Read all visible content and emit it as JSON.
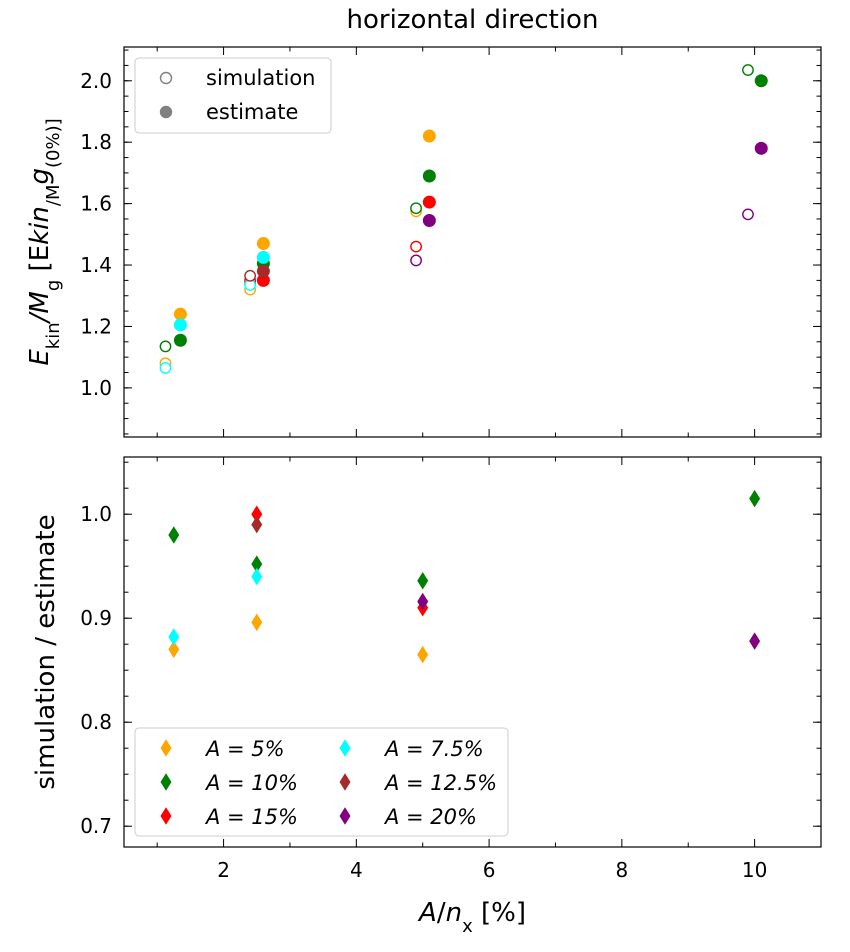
{
  "chart_data": [
    {
      "type": "scatter",
      "title": "horizontal direction",
      "ylabel_parts": [
        "E",
        "kin",
        "/M",
        "g",
        " [E",
        "kin",
        "/M",
        "g",
        "(0%)]"
      ],
      "ylabel": "E_kin/M_g [E_kin/M_g(0%)]",
      "xlim": [
        0.5,
        11
      ],
      "ylim": [
        0.84,
        2.11
      ],
      "yticks": [
        1.0,
        1.2,
        1.4,
        1.6,
        1.8,
        2.0
      ],
      "ytick_labels": [
        "1.0",
        "1.2",
        "1.4",
        "1.6",
        "1.8",
        "2.0"
      ],
      "legend": {
        "position": "top-left",
        "entries": [
          {
            "label": "simulation",
            "marker": "open-circle",
            "color": "#808080"
          },
          {
            "label": "estimate",
            "marker": "filled-circle",
            "color": "#808080"
          }
        ]
      },
      "series": [
        {
          "name": "A = 5%",
          "color": "#ffa500",
          "simulation": {
            "x": [
              1.125,
              2.4,
              4.9
            ],
            "y": [
              1.08,
              1.32,
              1.575
            ]
          },
          "estimate": {
            "x": [
              1.35,
              2.6,
              5.1
            ],
            "y": [
              1.24,
              1.47,
              1.82
            ]
          }
        },
        {
          "name": "A = 10%",
          "color": "#008000",
          "simulation": {
            "x": [
              1.125,
              2.4,
              4.9,
              9.9
            ],
            "y": [
              1.135,
              1.34,
              1.585,
              2.035
            ]
          },
          "estimate": {
            "x": [
              1.35,
              2.6,
              5.1,
              10.1
            ],
            "y": [
              1.155,
              1.405,
              1.69,
              2.0
            ]
          }
        },
        {
          "name": "A = 15%",
          "color": "#ff0000",
          "simulation": {
            "x": [
              2.4,
              4.9
            ],
            "y": [
              1.35,
              1.46
            ]
          },
          "estimate": {
            "x": [
              2.6,
              5.1
            ],
            "y": [
              1.35,
              1.605
            ]
          }
        },
        {
          "name": "A = 7.5%",
          "color": "#00ffff",
          "simulation": {
            "x": [
              1.125,
              2.4
            ],
            "y": [
              1.065,
              1.335
            ]
          },
          "estimate": {
            "x": [
              1.35,
              2.6
            ],
            "y": [
              1.205,
              1.425
            ]
          }
        },
        {
          "name": "A = 12.5%",
          "color": "#a52a2a",
          "simulation": {
            "x": [
              2.4
            ],
            "y": [
              1.365
            ]
          },
          "estimate": {
            "x": [
              2.6
            ],
            "y": [
              1.38
            ]
          }
        },
        {
          "name": "A = 20%",
          "color": "#800080",
          "simulation": {
            "x": [
              4.9,
              9.9
            ],
            "y": [
              1.415,
              1.565
            ]
          },
          "estimate": {
            "x": [
              5.1,
              10.1
            ],
            "y": [
              1.545,
              1.78
            ]
          }
        }
      ]
    },
    {
      "type": "scatter",
      "ylabel": "simulation / estimate",
      "xlabel_parts": [
        "A",
        "/",
        "n",
        "x",
        " [%]"
      ],
      "xlabel": "A/n_x [%]",
      "xlim": [
        0.5,
        11
      ],
      "ylim": [
        0.68,
        1.055
      ],
      "xticks": [
        2,
        4,
        6,
        8,
        10
      ],
      "xtick_labels": [
        "2",
        "4",
        "6",
        "8",
        "10"
      ],
      "yticks": [
        0.7,
        0.8,
        0.9,
        1.0
      ],
      "ytick_labels": [
        "0.7",
        "0.8",
        "0.9",
        "1.0"
      ],
      "legend": {
        "position": "bottom-left",
        "columns": 2,
        "entries": [
          {
            "label": "A = 5%",
            "series": 0
          },
          {
            "label": "A = 10%",
            "series": 1
          },
          {
            "label": "A = 15%",
            "series": 2
          },
          {
            "label": "A = 7.5%",
            "series": 3
          },
          {
            "label": "A = 12.5%",
            "series": 4
          },
          {
            "label": "A = 20%",
            "series": 5
          }
        ]
      },
      "series": [
        {
          "name": "A = 5%",
          "color": "#ffa500",
          "marker": "diamond",
          "x": [
            1.25,
            2.5,
            5.0
          ],
          "y": [
            0.87,
            0.896,
            0.865
          ]
        },
        {
          "name": "A = 10%",
          "color": "#008000",
          "marker": "diamond",
          "x": [
            1.25,
            2.5,
            5.0,
            10.0
          ],
          "y": [
            0.98,
            0.952,
            0.936,
            1.015
          ]
        },
        {
          "name": "A = 15%",
          "color": "#ff0000",
          "marker": "diamond",
          "x": [
            2.5,
            5.0
          ],
          "y": [
            1.0,
            0.91
          ]
        },
        {
          "name": "A = 7.5%",
          "color": "#00ffff",
          "marker": "diamond",
          "x": [
            1.25,
            2.5
          ],
          "y": [
            0.882,
            0.94
          ]
        },
        {
          "name": "A = 12.5%",
          "color": "#a52a2a",
          "marker": "diamond",
          "x": [
            2.5
          ],
          "y": [
            0.99
          ]
        },
        {
          "name": "A = 20%",
          "color": "#800080",
          "marker": "diamond",
          "x": [
            5.0,
            10.0
          ],
          "y": [
            0.916,
            0.878
          ]
        }
      ]
    }
  ]
}
